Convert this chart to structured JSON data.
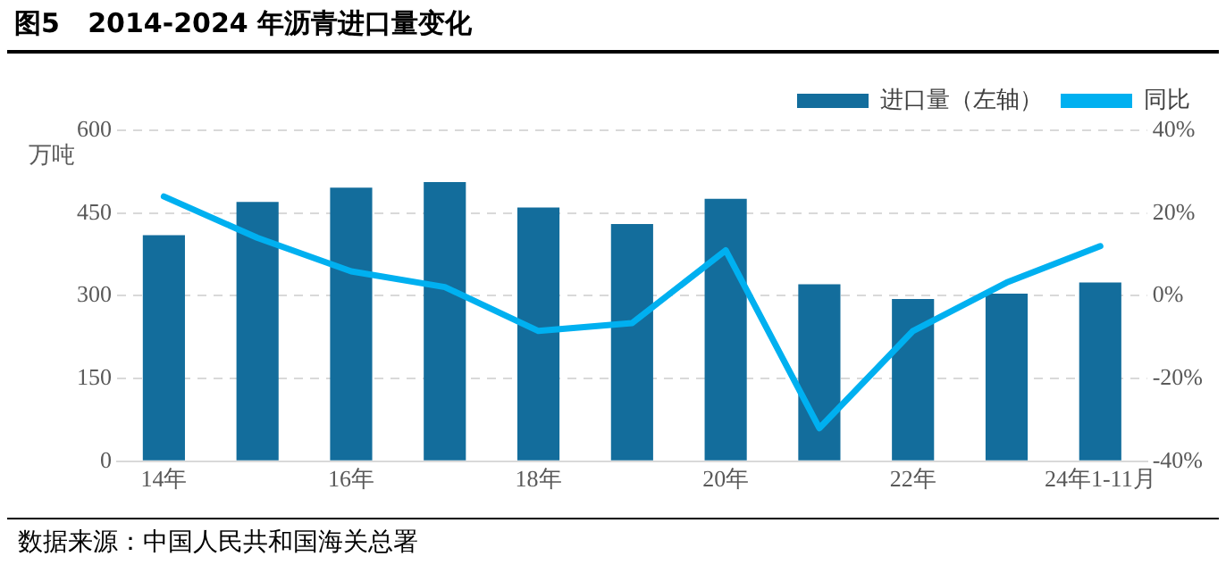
{
  "chart_data": {
    "type": "bar",
    "title": "图5   2014-2024 年沥青进口量变化",
    "ylabel": "万吨",
    "categories": [
      "14年",
      null,
      "16年",
      null,
      "18年",
      null,
      "20年",
      null,
      "22年",
      null,
      "24年1-11月"
    ],
    "series": [
      {
        "name": "进口量（左轴）",
        "color": "#136d9c",
        "values": [
          410,
          470,
          496,
          506,
          460,
          430,
          476,
          321,
          294,
          304,
          324
        ]
      },
      {
        "name": "同比",
        "type": "line",
        "axis": "y2",
        "color": "#00b0f0",
        "marker": "none",
        "values": [
          24,
          14,
          5.9,
          2.1,
          -8.5,
          -6.6,
          11,
          -32,
          -8.5,
          3.2,
          12
        ]
      }
    ],
    "ylim": [
      0,
      600
    ],
    "yticks": [
      0,
      150,
      300,
      450,
      600
    ],
    "y2lim": [
      -40,
      40
    ],
    "y2ticks": [
      {
        "value": -40,
        "label": "-40%"
      },
      {
        "value": -20,
        "label": "-20%"
      },
      {
        "value": 0,
        "label": "0%"
      },
      {
        "value": 20,
        "label": "20%"
      },
      {
        "value": 40,
        "label": "40%"
      }
    ],
    "grid": "y",
    "legend": "top right",
    "annotations": [
      "数据来源：中国人民共和国海关总署"
    ]
  }
}
